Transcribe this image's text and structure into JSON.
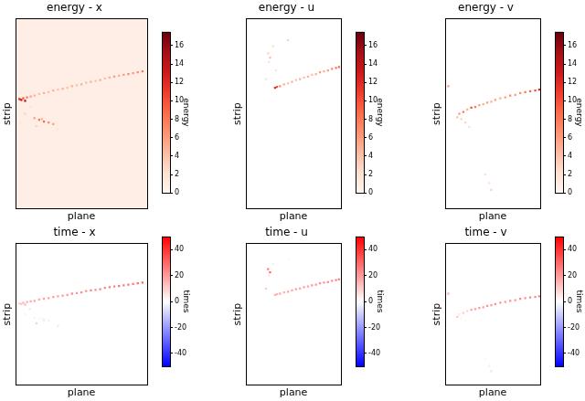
{
  "chart_data": [
    {
      "type": "heatmap",
      "title": "energy - x",
      "x_label": "plane",
      "y_label": "strip",
      "xlim": [
        0,
        140
      ],
      "ylim": [
        0,
        220
      ],
      "tick_labels": false,
      "grid": false,
      "background_value": 0.7,
      "cells": [
        [
          4,
          127,
          12
        ],
        [
          6,
          126,
          14
        ],
        [
          10,
          125,
          15
        ],
        [
          8,
          128,
          10
        ],
        [
          12,
          129,
          8
        ],
        [
          16,
          130,
          6
        ],
        [
          20,
          131,
          5
        ],
        [
          25,
          133,
          4
        ],
        [
          30,
          134,
          5
        ],
        [
          35,
          135,
          4
        ],
        [
          40,
          137,
          5
        ],
        [
          45,
          138,
          4
        ],
        [
          50,
          139,
          5
        ],
        [
          55,
          140,
          4
        ],
        [
          60,
          142,
          5
        ],
        [
          65,
          143,
          4
        ],
        [
          70,
          144,
          5
        ],
        [
          75,
          146,
          4
        ],
        [
          80,
          147,
          5
        ],
        [
          85,
          148,
          4
        ],
        [
          90,
          149,
          5
        ],
        [
          95,
          151,
          4
        ],
        [
          100,
          152,
          5
        ],
        [
          105,
          153,
          6
        ],
        [
          110,
          154,
          5
        ],
        [
          115,
          155,
          6
        ],
        [
          120,
          156,
          7
        ],
        [
          125,
          157,
          6
        ],
        [
          130,
          158,
          7
        ],
        [
          135,
          159,
          8
        ],
        [
          20,
          105,
          6
        ],
        [
          25,
          103,
          8
        ],
        [
          30,
          101,
          9
        ],
        [
          35,
          100,
          7
        ],
        [
          40,
          98,
          6
        ],
        [
          28,
          104,
          5
        ],
        [
          22,
          96,
          3
        ],
        [
          10,
          110,
          3
        ],
        [
          15,
          118,
          2
        ],
        [
          5,
          100,
          2
        ],
        [
          45,
          92,
          2
        ]
      ],
      "colorbar": {
        "label": "energy",
        "range": [
          0,
          17.5
        ],
        "ticks": [
          0,
          2,
          4,
          6,
          8,
          10,
          12,
          14,
          16
        ]
      }
    },
    {
      "type": "heatmap",
      "title": "energy - u",
      "x_label": "plane",
      "y_label": "strip",
      "xlim": [
        0,
        95
      ],
      "ylim": [
        0,
        220
      ],
      "tick_labels": false,
      "grid": false,
      "cells": [
        [
          29,
          140,
          12
        ],
        [
          31,
          141,
          10
        ],
        [
          34,
          142,
          7
        ],
        [
          38,
          144,
          5
        ],
        [
          42,
          145,
          4
        ],
        [
          46,
          147,
          5
        ],
        [
          50,
          149,
          4
        ],
        [
          54,
          150,
          5
        ],
        [
          58,
          152,
          4
        ],
        [
          62,
          153,
          5
        ],
        [
          66,
          155,
          4
        ],
        [
          70,
          156,
          5
        ],
        [
          74,
          158,
          6
        ],
        [
          78,
          159,
          5
        ],
        [
          82,
          160,
          6
        ],
        [
          86,
          162,
          7
        ],
        [
          90,
          163,
          8
        ],
        [
          93,
          164,
          9
        ],
        [
          22,
          180,
          3
        ],
        [
          24,
          175,
          4
        ],
        [
          23,
          170,
          2
        ],
        [
          27,
          188,
          2
        ],
        [
          42,
          195,
          3
        ],
        [
          30,
          160,
          2
        ],
        [
          20,
          150,
          2
        ]
      ],
      "colorbar": {
        "label": "energy",
        "range": [
          0,
          17.5
        ],
        "ticks": [
          0,
          2,
          4,
          6,
          8,
          10,
          12,
          14,
          16
        ]
      }
    },
    {
      "type": "heatmap",
      "title": "energy - v",
      "x_label": "plane",
      "y_label": "strip",
      "xlim": [
        0,
        95
      ],
      "ylim": [
        0,
        220
      ],
      "tick_labels": false,
      "grid": false,
      "cells": [
        [
          26,
          117,
          10
        ],
        [
          30,
          118,
          8
        ],
        [
          34,
          120,
          6
        ],
        [
          38,
          121,
          5
        ],
        [
          42,
          123,
          6
        ],
        [
          46,
          124,
          5
        ],
        [
          50,
          126,
          6
        ],
        [
          55,
          128,
          5
        ],
        [
          60,
          129,
          6
        ],
        [
          65,
          131,
          7
        ],
        [
          70,
          132,
          6
        ],
        [
          75,
          134,
          7
        ],
        [
          80,
          135,
          8
        ],
        [
          85,
          136,
          9
        ],
        [
          90,
          137,
          10
        ],
        [
          94,
          138,
          12
        ],
        [
          22,
          115,
          5
        ],
        [
          18,
          112,
          8
        ],
        [
          14,
          110,
          6
        ],
        [
          12,
          106,
          4
        ],
        [
          16,
          104,
          3
        ],
        [
          20,
          100,
          3
        ],
        [
          24,
          95,
          2
        ],
        [
          3,
          142,
          6
        ],
        [
          46,
          22,
          3
        ],
        [
          44,
          30,
          2
        ],
        [
          40,
          40,
          2
        ]
      ],
      "colorbar": {
        "label": "energy",
        "range": [
          0,
          17.5
        ],
        "ticks": [
          0,
          2,
          4,
          6,
          8,
          10,
          12,
          14,
          16
        ]
      }
    },
    {
      "type": "heatmap",
      "title": "time - x",
      "x_label": "plane",
      "y_label": "strip",
      "xlim": [
        0,
        140
      ],
      "ylim": [
        0,
        220
      ],
      "tick_labels": false,
      "grid": false,
      "cells": [
        [
          4,
          127,
          10
        ],
        [
          6,
          126,
          12
        ],
        [
          10,
          125,
          14
        ],
        [
          8,
          128,
          15
        ],
        [
          12,
          129,
          16
        ],
        [
          16,
          130,
          17
        ],
        [
          20,
          131,
          18
        ],
        [
          25,
          133,
          17
        ],
        [
          30,
          134,
          19
        ],
        [
          35,
          135,
          18
        ],
        [
          40,
          137,
          20
        ],
        [
          45,
          138,
          19
        ],
        [
          50,
          139,
          21
        ],
        [
          55,
          140,
          20
        ],
        [
          60,
          142,
          22
        ],
        [
          65,
          143,
          21
        ],
        [
          70,
          144,
          23
        ],
        [
          75,
          146,
          22
        ],
        [
          80,
          147,
          24
        ],
        [
          85,
          148,
          23
        ],
        [
          90,
          149,
          25
        ],
        [
          95,
          151,
          24
        ],
        [
          100,
          152,
          26
        ],
        [
          105,
          153,
          25
        ],
        [
          110,
          154,
          27
        ],
        [
          115,
          155,
          26
        ],
        [
          120,
          156,
          28
        ],
        [
          125,
          157,
          27
        ],
        [
          130,
          158,
          29
        ],
        [
          135,
          159,
          30
        ],
        [
          20,
          105,
          -3
        ],
        [
          25,
          103,
          2
        ],
        [
          30,
          101,
          -5
        ],
        [
          35,
          100,
          4
        ],
        [
          40,
          98,
          0
        ],
        [
          28,
          104,
          -2
        ],
        [
          22,
          96,
          -8
        ],
        [
          10,
          110,
          3
        ],
        [
          15,
          118,
          -4
        ],
        [
          5,
          100,
          0
        ],
        [
          45,
          92,
          6
        ]
      ],
      "colorbar": {
        "label": "times",
        "range": [
          -50,
          50
        ],
        "ticks": [
          -40,
          -20,
          0,
          20,
          40
        ]
      }
    },
    {
      "type": "heatmap",
      "title": "time - u",
      "x_label": "plane",
      "y_label": "strip",
      "xlim": [
        0,
        95
      ],
      "ylim": [
        0,
        220
      ],
      "tick_labels": false,
      "grid": false,
      "cells": [
        [
          29,
          140,
          15
        ],
        [
          31,
          141,
          16
        ],
        [
          34,
          142,
          17
        ],
        [
          38,
          144,
          16
        ],
        [
          42,
          145,
          18
        ],
        [
          46,
          147,
          17
        ],
        [
          50,
          149,
          19
        ],
        [
          54,
          150,
          18
        ],
        [
          58,
          152,
          20
        ],
        [
          62,
          153,
          19
        ],
        [
          66,
          155,
          21
        ],
        [
          70,
          156,
          20
        ],
        [
          74,
          158,
          22
        ],
        [
          78,
          159,
          21
        ],
        [
          82,
          160,
          23
        ],
        [
          86,
          162,
          22
        ],
        [
          90,
          163,
          24
        ],
        [
          93,
          164,
          25
        ],
        [
          22,
          180,
          25
        ],
        [
          24,
          175,
          30
        ],
        [
          23,
          170,
          5
        ],
        [
          27,
          188,
          -3
        ],
        [
          42,
          195,
          2
        ],
        [
          30,
          160,
          0
        ],
        [
          20,
          150,
          10
        ]
      ],
      "colorbar": {
        "label": "times",
        "range": [
          -50,
          50
        ],
        "ticks": [
          -40,
          -20,
          0,
          20,
          40
        ]
      }
    },
    {
      "type": "heatmap",
      "title": "time - v",
      "x_label": "plane",
      "y_label": "strip",
      "xlim": [
        0,
        95
      ],
      "ylim": [
        0,
        220
      ],
      "tick_labels": false,
      "grid": false,
      "cells": [
        [
          26,
          117,
          18
        ],
        [
          30,
          118,
          19
        ],
        [
          34,
          120,
          20
        ],
        [
          38,
          121,
          19
        ],
        [
          42,
          123,
          21
        ],
        [
          46,
          124,
          20
        ],
        [
          50,
          126,
          22
        ],
        [
          55,
          128,
          21
        ],
        [
          60,
          129,
          20
        ],
        [
          65,
          131,
          22
        ],
        [
          70,
          132,
          21
        ],
        [
          75,
          134,
          23
        ],
        [
          80,
          135,
          22
        ],
        [
          85,
          136,
          24
        ],
        [
          90,
          137,
          23
        ],
        [
          94,
          138,
          25
        ],
        [
          22,
          115,
          8
        ],
        [
          18,
          112,
          10
        ],
        [
          14,
          110,
          5
        ],
        [
          12,
          106,
          12
        ],
        [
          16,
          104,
          3
        ],
        [
          20,
          100,
          2
        ],
        [
          24,
          95,
          0
        ],
        [
          3,
          142,
          15
        ],
        [
          46,
          22,
          6
        ],
        [
          44,
          30,
          4
        ],
        [
          40,
          40,
          2
        ]
      ],
      "colorbar": {
        "label": "times",
        "range": [
          -50,
          50
        ],
        "ticks": [
          -40,
          -20,
          0,
          20,
          40
        ]
      }
    }
  ]
}
